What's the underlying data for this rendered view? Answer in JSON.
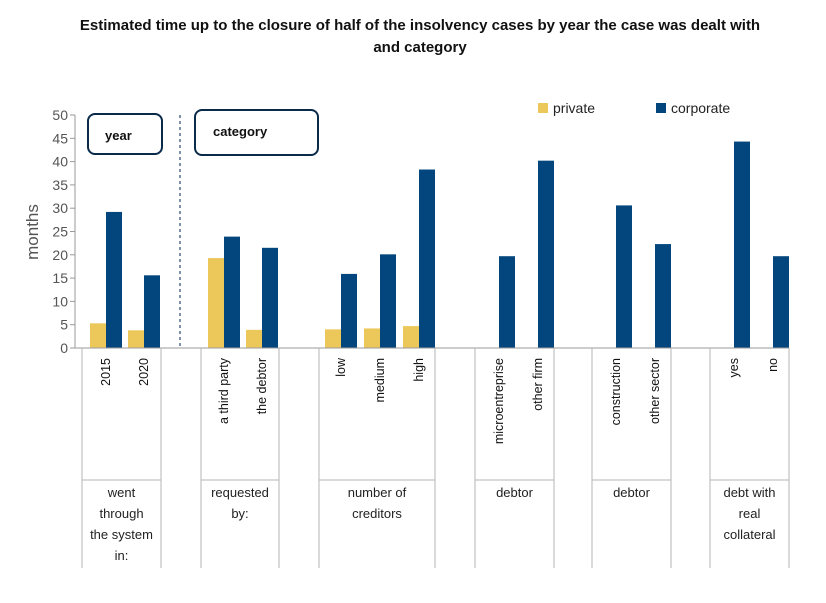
{
  "chart_data": {
    "type": "bar",
    "title_lines": [
      "Estimated time up to the closure of half of the insolvency cases by year the case was dealt with",
      "and category"
    ],
    "ylabel": "months",
    "ylim": [
      0,
      50
    ],
    "yticks": [
      0,
      5,
      10,
      15,
      20,
      25,
      30,
      35,
      40,
      45,
      50
    ],
    "categories": [
      "2015",
      "2020",
      "a third party",
      "the debtor",
      "low",
      "medium",
      "high",
      "microentreprise",
      "other firm",
      "construction",
      "other sector",
      "yes",
      "no"
    ],
    "series": [
      {
        "name": "private",
        "color": "#ECC75A",
        "values": [
          5.3,
          3.8,
          19.3,
          3.9,
          4.0,
          4.2,
          4.7,
          null,
          null,
          null,
          null,
          null,
          null
        ]
      },
      {
        "name": "corporate",
        "color": "#02467D",
        "values": [
          29.2,
          15.6,
          23.9,
          21.5,
          15.9,
          20.1,
          38.3,
          19.7,
          40.2,
          30.6,
          22.3,
          44.3,
          19.7
        ]
      }
    ],
    "groups": [
      {
        "label_lines": [
          "went",
          "through",
          "the system",
          "in:"
        ]
      },
      {
        "label_lines": [
          "requested",
          "by:"
        ]
      },
      {
        "label_lines": [
          "number of",
          "creditors"
        ]
      },
      {
        "label_lines": [
          "debtor"
        ]
      },
      {
        "label_lines": [
          "debtor"
        ]
      },
      {
        "label_lines": [
          "debt with",
          "real",
          "collateral"
        ]
      }
    ],
    "annotations": {
      "year_box": "year",
      "category_box": "category"
    },
    "legend": {
      "placement": "top-right"
    }
  }
}
